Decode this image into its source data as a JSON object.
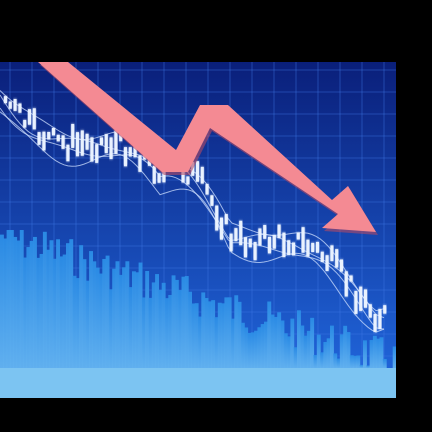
{
  "image": {
    "subject": "declining-stock-chart",
    "colors": {
      "background_top": "#0a1f7a",
      "background_bottom": "#1f63d8",
      "grid": "#3f78e6",
      "candle": "#e9f2ff",
      "volume": "#2b8de6",
      "volume_light": "#63b3f0",
      "arrow": "#f48a93",
      "arrow_shadow": "#b34a64",
      "ma_line": "#cfe0ff",
      "bottom_band": "#7cc4f2"
    },
    "arrow_icon": "downtrend-arrow-icon",
    "trend": "down",
    "candles_count": 80,
    "volume_bars_count": 120
  }
}
